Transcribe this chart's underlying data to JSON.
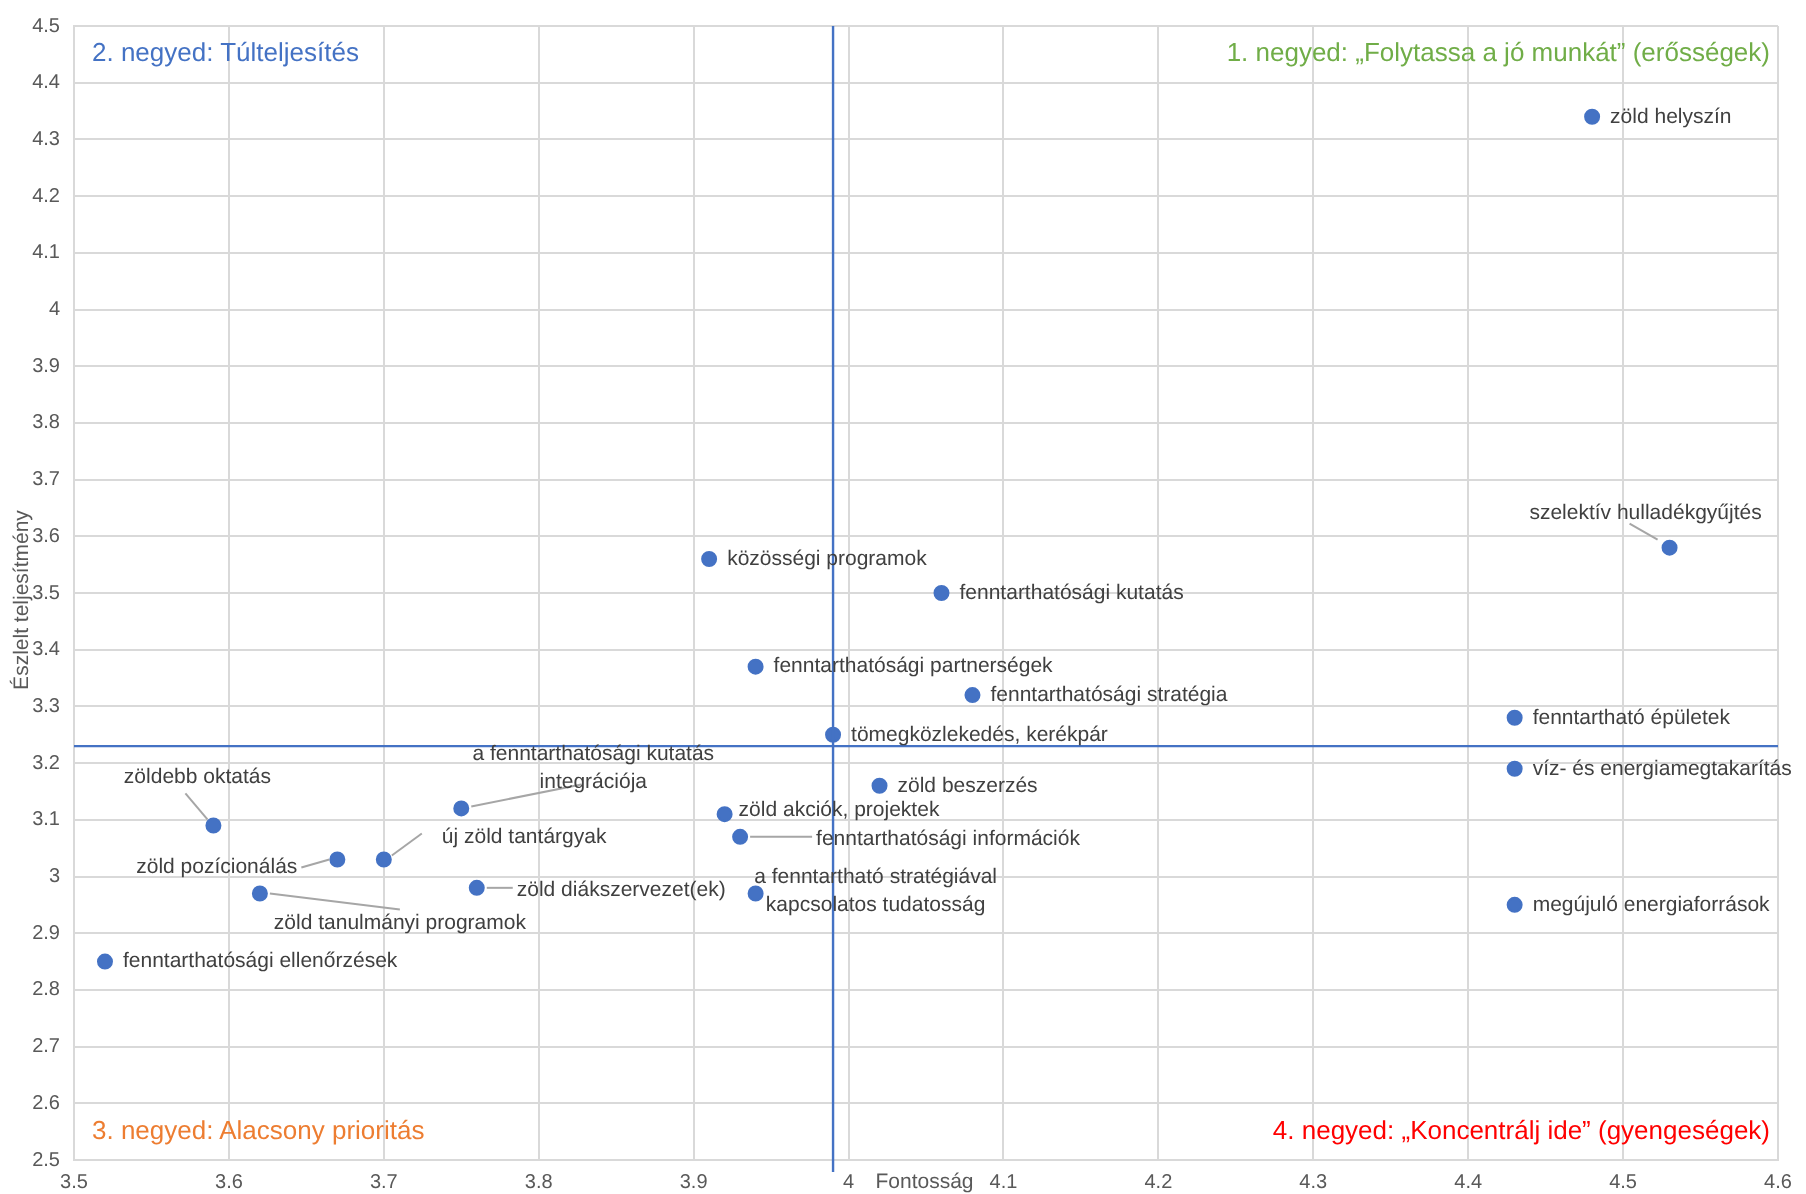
{
  "chart_data": {
    "type": "scatter",
    "xlabel": "Fontosság",
    "ylabel": "Észlelt teljesítmény",
    "annotations": [
      "1. negyed: „Folytassa a jó munkát” (erősségek)",
      "2. negyed: Túlteljesítés",
      "3. negyed: Alacsony prioritás",
      "4. negyed: „Koncentrálj ide” (gyengeségek)"
    ],
    "xlim": [
      3.5,
      4.6
    ],
    "xticks": [
      3.5,
      3.6,
      3.7,
      3.8,
      3.9,
      4,
      4.1,
      4.2,
      4.3,
      4.4,
      4.5,
      4.6
    ],
    "ylim": [
      2.5,
      4.5
    ],
    "yticks": [
      2.5,
      2.6,
      2.7,
      2.8,
      2.9,
      3,
      3.1,
      3.2,
      3.3,
      3.4,
      3.5,
      3.6,
      3.7,
      3.8,
      3.9,
      4,
      4.1,
      4.2,
      4.3,
      4.4,
      4.5
    ],
    "grid": true,
    "legend": false,
    "marker": "circle",
    "ref_lines": [
      {
        "axis": "x",
        "value": 3.99,
        "color": "#4472c4"
      },
      {
        "axis": "y",
        "value": 3.23,
        "color": "#4472c4"
      }
    ],
    "series": [
      {
        "name": "zöld helyszín",
        "color": "#4472c4",
        "x": [
          4.48
        ],
        "values": [
          4.34
        ]
      },
      {
        "name": "szelektív hulladékgyűjtés",
        "color": "#4472c4",
        "x": [
          4.53
        ],
        "values": [
          3.58
        ]
      },
      {
        "name": "közösségi programok",
        "color": "#4472c4",
        "x": [
          3.91
        ],
        "values": [
          3.56
        ]
      },
      {
        "name": "fenntarthatósági kutatás",
        "color": "#4472c4",
        "x": [
          4.06
        ],
        "values": [
          3.5
        ]
      },
      {
        "name": "fenntarthatósági partnerségek",
        "color": "#4472c4",
        "x": [
          3.94
        ],
        "values": [
          3.37
        ]
      },
      {
        "name": "fenntarthatósági stratégia",
        "color": "#4472c4",
        "x": [
          4.08
        ],
        "values": [
          3.32
        ]
      },
      {
        "name": "tömegközlekedés, kerékpár",
        "color": "#4472c4",
        "x": [
          3.99
        ],
        "values": [
          3.25
        ]
      },
      {
        "name": "fenntartható épületek",
        "color": "#4472c4",
        "x": [
          4.43
        ],
        "values": [
          3.28
        ]
      },
      {
        "name": "víz- és energiamegtakarítás",
        "color": "#4472c4",
        "x": [
          4.43
        ],
        "values": [
          3.19
        ]
      },
      {
        "name": "zöld beszerzés",
        "color": "#4472c4",
        "x": [
          4.02
        ],
        "values": [
          3.16
        ]
      },
      {
        "name": "zöld akciók, projektek",
        "color": "#4472c4",
        "x": [
          3.92
        ],
        "values": [
          3.11
        ]
      },
      {
        "name": "fenntarthatósági információk",
        "color": "#4472c4",
        "x": [
          3.93
        ],
        "values": [
          3.07
        ]
      },
      {
        "name": "a fenntartható stratégiával kapcsolatos tudatosság",
        "color": "#4472c4",
        "x": [
          3.94
        ],
        "values": [
          2.97
        ]
      },
      {
        "name": "megújuló energiaforrások",
        "color": "#4472c4",
        "x": [
          4.43
        ],
        "values": [
          2.95
        ]
      },
      {
        "name": "zöldebb oktatás",
        "color": "#4472c4",
        "x": [
          3.59
        ],
        "values": [
          3.09
        ]
      },
      {
        "name": "a fenntarthatósági kutatás integrációja",
        "color": "#4472c4",
        "x": [
          3.75
        ],
        "values": [
          3.12
        ]
      },
      {
        "name": "új zöld tantárgyak",
        "color": "#4472c4",
        "x": [
          3.7
        ],
        "values": [
          3.03
        ]
      },
      {
        "name": "zöld pozícionálás",
        "color": "#4472c4",
        "x": [
          3.67
        ],
        "values": [
          3.03
        ]
      },
      {
        "name": "zöld diákszervezet(ek)",
        "color": "#4472c4",
        "x": [
          3.76
        ],
        "values": [
          2.98
        ]
      },
      {
        "name": "zöld tanulmányi programok",
        "color": "#4472c4",
        "x": [
          3.62
        ],
        "values": [
          2.97
        ]
      },
      {
        "name": "fenntarthatósági ellenőrzések",
        "color": "#4472c4",
        "x": [
          3.52
        ],
        "values": [
          2.85
        ]
      }
    ]
  }
}
